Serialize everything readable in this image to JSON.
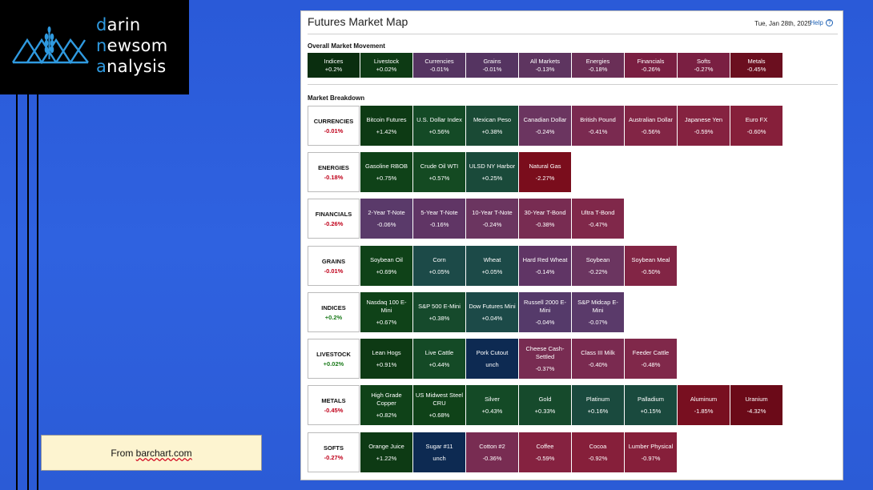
{
  "brand": {
    "line1_first": "d",
    "line1_rest": "arin",
    "line2_first": "n",
    "line2_rest": "ewsom",
    "line3_first": "a",
    "line3_rest": "nalysis"
  },
  "source_note": {
    "prefix": "From ",
    "link": "barchart.com"
  },
  "header": {
    "title": "Futures Market Map",
    "date": "Tue, Jan 28th, 2025",
    "help": "Help"
  },
  "overall": {
    "label": "Overall Market Movement",
    "items": [
      {
        "name": "Indices",
        "change": "+0.2%",
        "color": "#0a2e0f"
      },
      {
        "name": "Livestock",
        "change": "+0.02%",
        "color": "#0d3a14"
      },
      {
        "name": "Currencies",
        "change": "-0.01%",
        "color": "#553461"
      },
      {
        "name": "Grains",
        "change": "-0.01%",
        "color": "#553461"
      },
      {
        "name": "All Markets",
        "change": "-0.13%",
        "color": "#5e3560"
      },
      {
        "name": "Energies",
        "change": "-0.18%",
        "color": "#6a2f57"
      },
      {
        "name": "Financials",
        "change": "-0.26%",
        "color": "#7a1f42"
      },
      {
        "name": "Softs",
        "change": "-0.27%",
        "color": "#7a1f42"
      },
      {
        "name": "Metals",
        "change": "-0.45%",
        "color": "#6b0f1f"
      }
    ]
  },
  "breakdown": {
    "label": "Market Breakdown",
    "rows": [
      {
        "category": "CURRENCIES",
        "change": "-0.01%",
        "sign": "neg",
        "items": [
          {
            "name": "Bitcoin Futures",
            "change": "+1.42%",
            "color": "#0d3a14"
          },
          {
            "name": "U.S. Dollar Index",
            "change": "+0.56%",
            "color": "#144a26"
          },
          {
            "name": "Mexican Peso",
            "change": "+0.38%",
            "color": "#1a4a35"
          },
          {
            "name": "Canadian Dollar",
            "change": "-0.24%",
            "color": "#6b3560"
          },
          {
            "name": "British Pound",
            "change": "-0.41%",
            "color": "#7a2a50"
          },
          {
            "name": "Australian Dollar",
            "change": "-0.56%",
            "color": "#822545"
          },
          {
            "name": "Japanese Yen",
            "change": "-0.59%",
            "color": "#852240"
          },
          {
            "name": "Euro FX",
            "change": "-0.60%",
            "color": "#861f3a"
          }
        ]
      },
      {
        "category": "ENERGIES",
        "change": "-0.18%",
        "sign": "neg",
        "items": [
          {
            "name": "Gasoline RBOB",
            "change": "+0.75%",
            "color": "#0f4218"
          },
          {
            "name": "Crude Oil WTI",
            "change": "+0.57%",
            "color": "#144a22"
          },
          {
            "name": "ULSD NY Harbor",
            "change": "+0.25%",
            "color": "#1a4a3a"
          },
          {
            "name": "Natural Gas",
            "change": "-2.27%",
            "color": "#7a0d1c"
          }
        ]
      },
      {
        "category": "FINANCIALS",
        "change": "-0.26%",
        "sign": "neg",
        "items": [
          {
            "name": "2-Year T-Note",
            "change": "-0.06%",
            "color": "#5a3a6a"
          },
          {
            "name": "5-Year T-Note",
            "change": "-0.16%",
            "color": "#603565"
          },
          {
            "name": "10-Year T-Note",
            "change": "-0.24%",
            "color": "#6b3560"
          },
          {
            "name": "30-Year T-Bond",
            "change": "-0.38%",
            "color": "#782c52"
          },
          {
            "name": "Ultra T-Bond",
            "change": "-0.47%",
            "color": "#80284a"
          }
        ]
      },
      {
        "category": "GRAINS",
        "change": "-0.01%",
        "sign": "neg",
        "items": [
          {
            "name": "Soybean Oil",
            "change": "+0.69%",
            "color": "#0f4218"
          },
          {
            "name": "Corn",
            "change": "+0.05%",
            "color": "#1c4a48"
          },
          {
            "name": "Wheat",
            "change": "+0.05%",
            "color": "#1c4a48"
          },
          {
            "name": "Hard Red Wheat",
            "change": "-0.14%",
            "color": "#603565"
          },
          {
            "name": "Soybean",
            "change": "-0.22%",
            "color": "#6b3560"
          },
          {
            "name": "Soybean Meal",
            "change": "-0.50%",
            "color": "#822545"
          }
        ]
      },
      {
        "category": "INDICES",
        "change": "+0.2%",
        "sign": "pos",
        "items": [
          {
            "name": "Nasdaq 100 E-Mini",
            "change": "+0.67%",
            "color": "#0f4218"
          },
          {
            "name": "S&P 500 E-Mini",
            "change": "+0.38%",
            "color": "#164a2c"
          },
          {
            "name": "Dow Futures Mini",
            "change": "+0.04%",
            "color": "#1c4a48"
          },
          {
            "name": "Russell 2000 E-Mini",
            "change": "-0.04%",
            "color": "#553a6a"
          },
          {
            "name": "S&P Midcap E-Mini",
            "change": "-0.07%",
            "color": "#5a3a6a"
          }
        ]
      },
      {
        "category": "LIVESTOCK",
        "change": "+0.02%",
        "sign": "pos",
        "items": [
          {
            "name": "Lean Hogs",
            "change": "+0.91%",
            "color": "#0d3a14"
          },
          {
            "name": "Live Cattle",
            "change": "+0.44%",
            "color": "#144a26"
          },
          {
            "name": "Pork Cutout",
            "change": "unch",
            "color": "#0d2a52"
          },
          {
            "name": "Cheese Cash-Settled",
            "change": "-0.37%",
            "color": "#782c52"
          },
          {
            "name": "Class III Milk",
            "change": "-0.40%",
            "color": "#7a2a50"
          },
          {
            "name": "Feeder Cattle",
            "change": "-0.48%",
            "color": "#80284a"
          }
        ]
      },
      {
        "category": "METALS",
        "change": "-0.45%",
        "sign": "neg",
        "items": [
          {
            "name": "High Grade Copper",
            "change": "+0.82%",
            "color": "#0f4218"
          },
          {
            "name": "US Midwest Steel CRU",
            "change": "+0.68%",
            "color": "#0f4218"
          },
          {
            "name": "Silver",
            "change": "+0.43%",
            "color": "#144a26"
          },
          {
            "name": "Gold",
            "change": "+0.33%",
            "color": "#164a2c"
          },
          {
            "name": "Platinum",
            "change": "+0.16%",
            "color": "#1a4a3e"
          },
          {
            "name": "Palladium",
            "change": "+0.15%",
            "color": "#1a4a3e"
          },
          {
            "name": "Aluminum",
            "change": "-1.85%",
            "color": "#780f20"
          },
          {
            "name": "Uranium",
            "change": "-4.32%",
            "color": "#6b0a18"
          }
        ]
      },
      {
        "category": "SOFTS",
        "change": "-0.27%",
        "sign": "neg",
        "items": [
          {
            "name": "Orange Juice",
            "change": "+1.22%",
            "color": "#0d3a14"
          },
          {
            "name": "Sugar #11",
            "change": "unch",
            "color": "#0d2a52"
          },
          {
            "name": "Cotton #2",
            "change": "-0.36%",
            "color": "#782c52"
          },
          {
            "name": "Coffee",
            "change": "-0.59%",
            "color": "#852240"
          },
          {
            "name": "Cocoa",
            "change": "-0.92%",
            "color": "#861f3a"
          },
          {
            "name": "Lumber Physical",
            "change": "-0.97%",
            "color": "#861f3a"
          }
        ]
      }
    ]
  }
}
